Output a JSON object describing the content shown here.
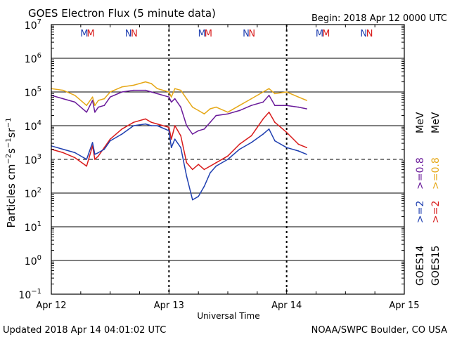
{
  "header": {
    "title": "GOES Electron Flux (5 minute data)",
    "begin": "Begin: 2018 Apr 12 0000 UTC"
  },
  "footer": {
    "updated": "Updated 2018 Apr 14 04:01:02 UTC",
    "credit": "NOAA/SWPC Boulder, CO USA"
  },
  "colors": {
    "goes14_low": "#1f3fb0",
    "goes15_low": "#d81b1b",
    "goes14_high": "#6a1b9a",
    "goes15_high": "#e6a817"
  },
  "chart_data": {
    "type": "line",
    "title": "GOES Electron Flux (5 minute data)",
    "xlabel": "Universal Time",
    "ylabel": "Particles cm-2 s-1 sr-1",
    "xlim": [
      0,
      3
    ],
    "ylim_log10": [
      -1,
      7
    ],
    "x_tick_labels": [
      "Apr 12",
      "Apr 13",
      "Apr 14",
      "Apr 15"
    ],
    "y_tick_labels": [
      {
        "base": "10",
        "exp": "7"
      },
      {
        "base": "10",
        "exp": "6"
      },
      {
        "base": "10",
        "exp": "5"
      },
      {
        "base": "10",
        "exp": "4"
      },
      {
        "base": "10",
        "exp": "3"
      },
      {
        "base": "10",
        "exp": "2"
      },
      {
        "base": "10",
        "exp": "1"
      },
      {
        "base": "10",
        "exp": "0"
      },
      {
        "base": "10",
        "exp": "−1"
      }
    ],
    "threshold_log10": 3,
    "eclipse_markers": [
      {
        "day": 0,
        "items": [
          {
            "t": "M",
            "s": "goes14_low"
          },
          {
            "t": "M",
            "s": "goes15_low"
          },
          {
            "t": "N",
            "s": "goes14_low"
          },
          {
            "t": "N",
            "s": "goes15_low"
          }
        ]
      },
      {
        "day": 1,
        "items": [
          {
            "t": "M",
            "s": "goes14_low"
          },
          {
            "t": "M",
            "s": "goes15_low"
          },
          {
            "t": "N",
            "s": "goes14_low"
          },
          {
            "t": "N",
            "s": "goes15_low"
          }
        ]
      },
      {
        "day": 2,
        "items": [
          {
            "t": "M",
            "s": "goes14_low"
          },
          {
            "t": "M",
            "s": "goes15_low"
          },
          {
            "t": "N",
            "s": "goes14_low"
          },
          {
            "t": "N",
            "s": "goes15_low"
          }
        ]
      }
    ],
    "legend": {
      "goes14": "GOES14",
      "goes15": "GOES15",
      "g14_low": ">=2",
      "g14_high": ">=0.8",
      "g15_low": ">=2",
      "g15_high": ">=0.8",
      "unit": "MeV"
    },
    "series": [
      {
        "name": "GOES15 >=0.8 MeV",
        "color_key": "goes15_high",
        "x": [
          0,
          0.1,
          0.2,
          0.3,
          0.35,
          0.37,
          0.4,
          0.45,
          0.5,
          0.6,
          0.7,
          0.8,
          0.85,
          0.9,
          1.0,
          1.02,
          1.05,
          1.1,
          1.15,
          1.2,
          1.25,
          1.3,
          1.35,
          1.4,
          1.5,
          1.6,
          1.7,
          1.8,
          1.85,
          1.9,
          2.0,
          2.1,
          2.17
        ],
        "y": [
          5.1,
          5.05,
          4.9,
          4.6,
          4.85,
          4.6,
          4.75,
          4.8,
          5.0,
          5.15,
          5.2,
          5.3,
          5.25,
          5.1,
          5.0,
          4.85,
          5.1,
          5.05,
          4.8,
          4.55,
          4.45,
          4.35,
          4.5,
          4.55,
          4.4,
          4.6,
          4.8,
          5.0,
          5.1,
          4.95,
          5.0,
          4.85,
          4.75
        ]
      },
      {
        "name": "GOES14 >=0.8 MeV",
        "color_key": "goes14_high",
        "x": [
          0,
          0.1,
          0.2,
          0.3,
          0.35,
          0.37,
          0.4,
          0.45,
          0.5,
          0.6,
          0.7,
          0.8,
          0.85,
          0.9,
          1.0,
          1.02,
          1.05,
          1.1,
          1.15,
          1.2,
          1.25,
          1.3,
          1.35,
          1.4,
          1.5,
          1.6,
          1.7,
          1.8,
          1.85,
          1.9,
          2.0,
          2.1,
          2.17
        ],
        "y": [
          4.9,
          4.8,
          4.7,
          4.4,
          4.75,
          4.4,
          4.55,
          4.6,
          4.85,
          5.0,
          5.05,
          5.05,
          5.0,
          4.95,
          4.85,
          4.7,
          4.8,
          4.55,
          4.0,
          3.75,
          3.85,
          3.9,
          4.1,
          4.3,
          4.35,
          4.45,
          4.6,
          4.7,
          4.9,
          4.6,
          4.6,
          4.55,
          4.5
        ]
      },
      {
        "name": "GOES15 >=2 MeV",
        "color_key": "goes15_low",
        "x": [
          0,
          0.1,
          0.2,
          0.3,
          0.35,
          0.37,
          0.4,
          0.45,
          0.5,
          0.6,
          0.7,
          0.8,
          0.85,
          0.9,
          1.0,
          1.02,
          1.05,
          1.1,
          1.15,
          1.2,
          1.25,
          1.3,
          1.35,
          1.4,
          1.5,
          1.6,
          1.7,
          1.8,
          1.85,
          1.9,
          2.0,
          2.1,
          2.17
        ],
        "y": [
          3.3,
          3.2,
          3.05,
          2.8,
          3.4,
          3.0,
          3.1,
          3.35,
          3.6,
          3.9,
          4.1,
          4.2,
          4.1,
          4.05,
          3.95,
          3.6,
          4.0,
          3.7,
          2.9,
          2.7,
          2.85,
          2.7,
          2.8,
          2.9,
          3.1,
          3.45,
          3.7,
          4.2,
          4.4,
          4.1,
          3.8,
          3.45,
          3.35
        ]
      },
      {
        "name": "GOES14 >=2 MeV",
        "color_key": "goes14_low",
        "x": [
          0,
          0.1,
          0.2,
          0.3,
          0.35,
          0.37,
          0.4,
          0.45,
          0.5,
          0.6,
          0.7,
          0.8,
          0.85,
          0.9,
          1.0,
          1.02,
          1.05,
          1.1,
          1.15,
          1.2,
          1.25,
          1.3,
          1.35,
          1.4,
          1.5,
          1.6,
          1.7,
          1.8,
          1.85,
          1.9,
          2.0,
          2.1,
          2.17
        ],
        "y": [
          3.4,
          3.3,
          3.2,
          3.0,
          3.5,
          3.15,
          3.2,
          3.3,
          3.55,
          3.75,
          4.0,
          4.05,
          4.0,
          4.0,
          3.85,
          3.35,
          3.6,
          3.35,
          2.5,
          1.8,
          1.9,
          2.2,
          2.6,
          2.8,
          3.0,
          3.3,
          3.5,
          3.75,
          3.9,
          3.55,
          3.35,
          3.25,
          3.15
        ]
      }
    ]
  }
}
